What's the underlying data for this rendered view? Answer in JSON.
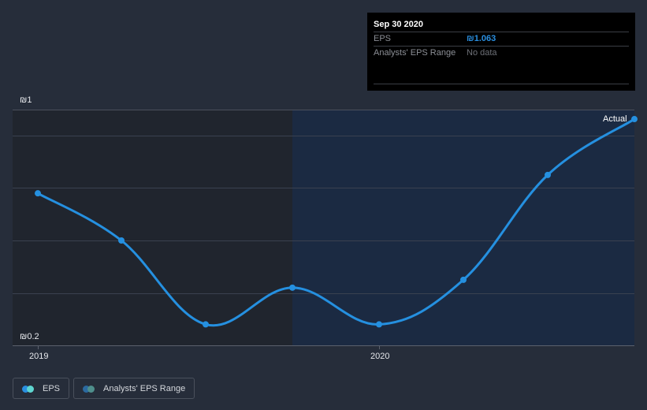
{
  "colors": {
    "background": "#262d3a",
    "past_region": "#20252e",
    "future_region": "#1b2a42",
    "gridline": "#3a4150",
    "axis_line": "#5b616d",
    "line": "#2590e0",
    "tooltip_bg": "#000000",
    "eps_value": "#2a8fe0"
  },
  "tooltip": {
    "date": "Sep 30 2020",
    "rows": [
      {
        "label": "EPS",
        "value": "₪1.063"
      },
      {
        "label": "Analysts' EPS Range",
        "value": "No data"
      }
    ]
  },
  "axes": {
    "y_top_label": "₪1",
    "y_bottom_label": "₪0.2",
    "x_ticks": [
      "2019",
      "2020"
    ]
  },
  "annotations": {
    "actual_label": "Actual"
  },
  "legend": [
    {
      "label": "EPS",
      "dot_colors": [
        "#2a8fe0",
        "#5fd6d0"
      ]
    },
    {
      "label": "Analysts' EPS Range",
      "dot_colors": [
        "#2b6aa0",
        "#4f8f8c"
      ]
    }
  ],
  "chart_data": {
    "type": "line",
    "title": "",
    "xlabel": "",
    "ylabel": "EPS (₪)",
    "ylim": [
      0.2,
      1.1
    ],
    "grid": true,
    "legend_position": "bottom-left",
    "x": [
      "Dec 2018",
      "Mar 2019",
      "Jun 2019",
      "Sep 2019",
      "Dec 2019",
      "Mar 2020",
      "Jun 2020",
      "Sep 2020"
    ],
    "series": [
      {
        "name": "EPS",
        "values": [
          0.78,
          0.6,
          0.28,
          0.42,
          0.28,
          0.45,
          0.85,
          1.063
        ]
      }
    ],
    "y_tick_labels": [
      "₪1",
      "₪0.2"
    ],
    "x_tick_labels": [
      "2019",
      "2020"
    ],
    "annotations": [
      "Actual"
    ],
    "legend": [
      "EPS",
      "Analysts' EPS Range"
    ]
  }
}
